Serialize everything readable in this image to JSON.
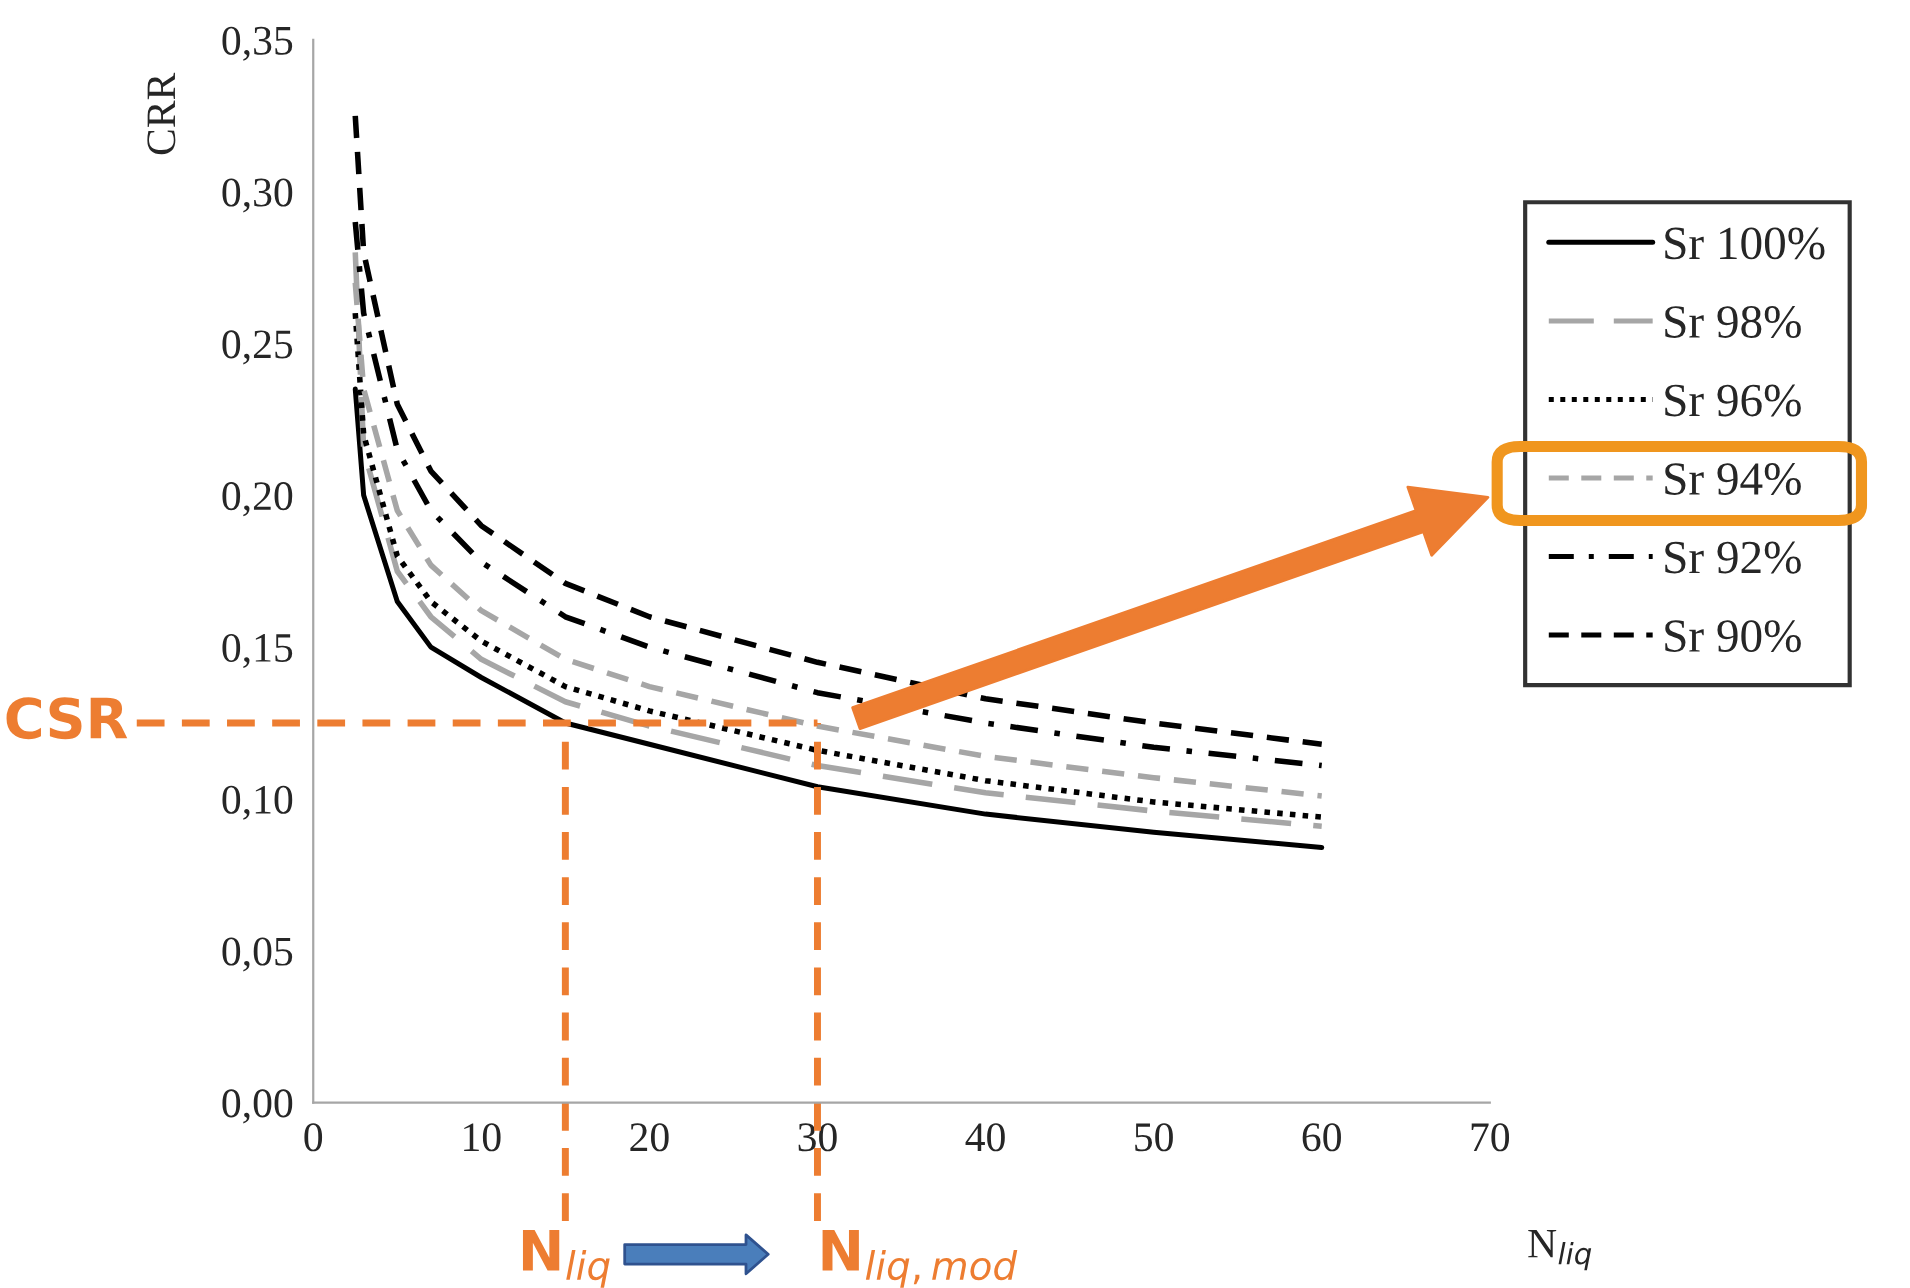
{
  "chart_data": {
    "type": "line",
    "xlabel": "N$_{liq}$",
    "ylabel": "CRR",
    "series": [
      {
        "name": "Sr 100%",
        "color": "#000000",
        "line_style": "solid",
        "x": [
          2.5,
          3,
          5,
          7,
          10,
          15,
          20,
          30,
          40,
          50,
          60
        ],
        "values": [
          0.235,
          0.2,
          0.165,
          0.15,
          0.14,
          0.125,
          0.118,
          0.104,
          0.095,
          0.089,
          0.084
        ]
      },
      {
        "name": "Sr 98%",
        "color": "#a6a6a6",
        "line_style": "longdash",
        "x": [
          2.5,
          3,
          5,
          7,
          10,
          15,
          20,
          30,
          40,
          50,
          60
        ],
        "values": [
          0.28,
          0.215,
          0.175,
          0.16,
          0.146,
          0.132,
          0.124,
          0.111,
          0.102,
          0.096,
          0.091
        ]
      },
      {
        "name": "Sr 96%",
        "color": "#000000",
        "line_style": "dotted",
        "x": [
          2.5,
          3,
          5,
          7,
          10,
          15,
          20,
          30,
          40,
          50,
          60
        ],
        "values": [
          0.26,
          0.22,
          0.18,
          0.165,
          0.152,
          0.137,
          0.129,
          0.116,
          0.106,
          0.099,
          0.094
        ]
      },
      {
        "name": "Sr 94%",
        "color": "#a6a6a6",
        "line_style": "dashed",
        "x": [
          2.5,
          3,
          5,
          7,
          10,
          15,
          20,
          30,
          40,
          50,
          60
        ],
        "values": [
          0.27,
          0.235,
          0.195,
          0.177,
          0.162,
          0.146,
          0.137,
          0.124,
          0.114,
          0.107,
          0.101
        ]
      },
      {
        "name": "Sr 92%",
        "color": "#000000",
        "line_style": "dashdot",
        "x": [
          2.5,
          3,
          5,
          7,
          10,
          15,
          20,
          30,
          40,
          50,
          60
        ],
        "values": [
          0.29,
          0.26,
          0.215,
          0.195,
          0.178,
          0.16,
          0.15,
          0.135,
          0.125,
          0.117,
          0.111
        ]
      },
      {
        "name": "Sr 90%",
        "color": "#000000",
        "line_style": "dashed",
        "x": [
          2.5,
          3,
          5,
          7,
          10,
          15,
          20,
          30,
          40,
          50,
          60
        ],
        "values": [
          0.325,
          0.28,
          0.23,
          0.208,
          0.19,
          0.171,
          0.16,
          0.145,
          0.133,
          0.125,
          0.118
        ]
      }
    ],
    "xlim": [
      0,
      70
    ],
    "xticks": [
      0,
      10,
      20,
      30,
      40,
      50,
      60,
      70
    ],
    "ylim": [
      0,
      0.35
    ],
    "yticks": [
      {
        "value": 0,
        "label": "0,00"
      },
      {
        "value": 0.05,
        "label": "0,05"
      },
      {
        "value": 0.1,
        "label": "0,10"
      },
      {
        "value": 0.15,
        "label": "0,15"
      },
      {
        "value": 0.2,
        "label": "0,20"
      },
      {
        "value": 0.25,
        "label": "0,25"
      },
      {
        "value": 0.3,
        "label": "0,30"
      },
      {
        "value": 0.35,
        "label": "0,35"
      }
    ],
    "ref_lines": [
      {
        "axis": "y",
        "value": 0.125,
        "label": "CSR",
        "color": "#ed7d31",
        "line_style": "dashed"
      },
      {
        "axis": "x",
        "value": 15,
        "label": "N$_{liq}$",
        "color": "#ed7d31",
        "line_style": "dashed"
      },
      {
        "axis": "x",
        "value": 30,
        "label": "N$_{liq,mod}$",
        "color": "#ed7d31",
        "line_style": "dashed"
      }
    ],
    "legend": "right",
    "grid": false
  }
}
